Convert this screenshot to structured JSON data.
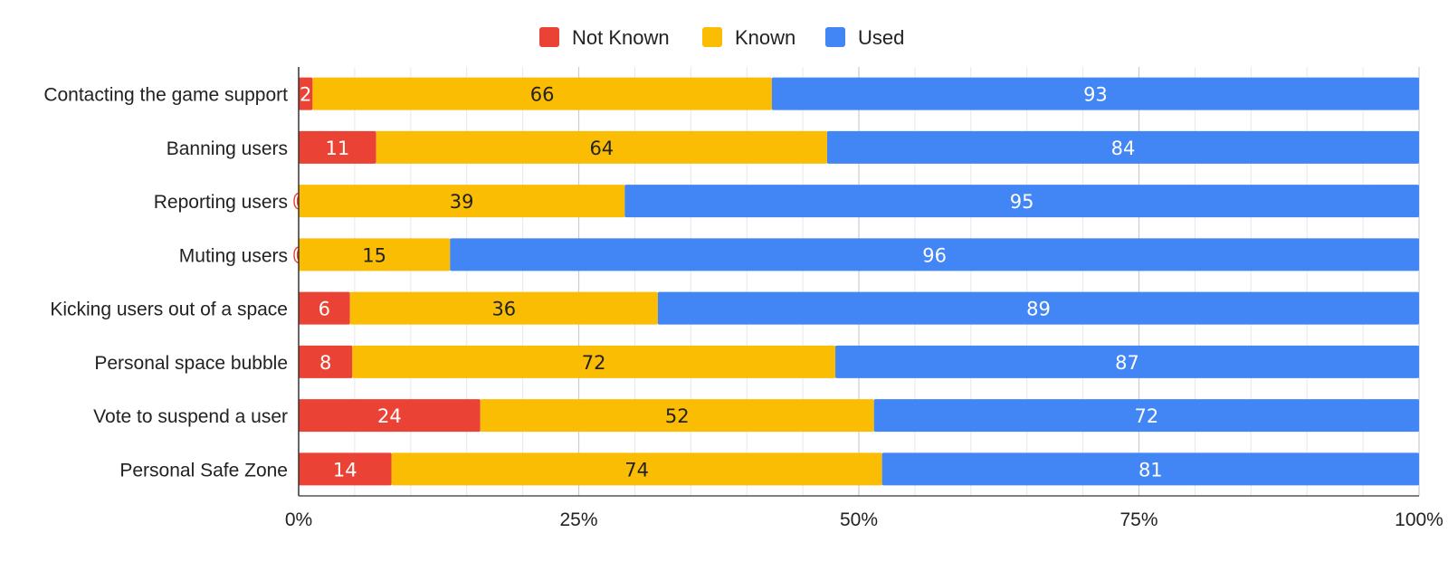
{
  "chart_data": {
    "type": "bar",
    "orientation": "horizontal",
    "stacking": "percent",
    "title": "",
    "xlabel": "",
    "ylabel": "",
    "legend_position": "top",
    "grid": true,
    "xlim": [
      0,
      100
    ],
    "x_ticks": [
      "0%",
      "25%",
      "50%",
      "75%",
      "100%"
    ],
    "categories": [
      "Contacting the game support",
      "Banning users",
      "Reporting users",
      "Muting users",
      "Kicking users out of a space",
      "Personal space bubble",
      "Vote to suspend a user",
      "Personal Safe Zone"
    ],
    "series": [
      {
        "name": "Not Known",
        "color": "#ea4335",
        "label_color": "#ffffff",
        "values": [
          2,
          11,
          0,
          0,
          6,
          8,
          24,
          14
        ]
      },
      {
        "name": "Known",
        "color": "#fbbc04",
        "label_color": "#222222",
        "values": [
          66,
          64,
          39,
          15,
          36,
          72,
          52,
          74
        ]
      },
      {
        "name": "Used",
        "color": "#4285f4",
        "label_color": "#ffffff",
        "values": [
          93,
          84,
          95,
          96,
          89,
          87,
          72,
          81
        ]
      }
    ]
  }
}
